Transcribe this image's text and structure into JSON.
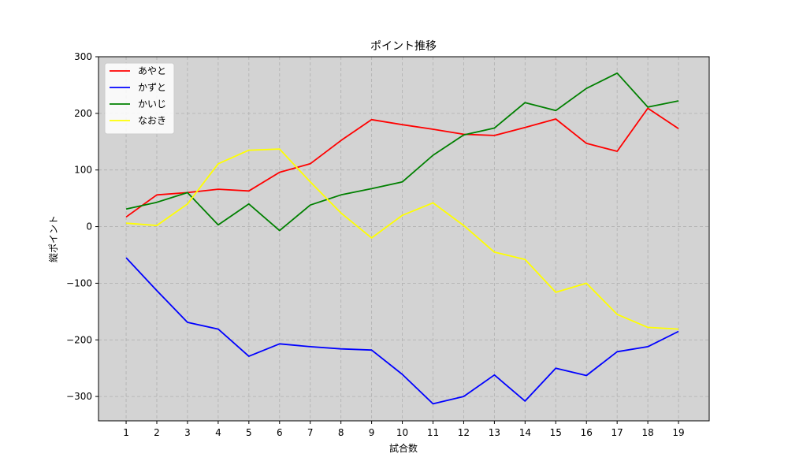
{
  "chart_data": {
    "type": "line",
    "title": "ポイント推移",
    "xlabel": "試合数",
    "ylabel": "縦ポイント",
    "x": [
      1,
      2,
      3,
      4,
      5,
      6,
      7,
      8,
      9,
      10,
      11,
      12,
      13,
      14,
      15,
      16,
      17,
      18,
      19
    ],
    "xlim": [
      0.1,
      20.0
    ],
    "ylim": [
      -343,
      300
    ],
    "yticks": [
      -300,
      -200,
      -100,
      0,
      100,
      200,
      300
    ],
    "ytick_labels": [
      "−300",
      "−200",
      "−100",
      "0",
      "100",
      "200",
      "300"
    ],
    "grid": true,
    "legend_position": "top-left",
    "background_color": "#d3d3d3",
    "series": [
      {
        "name": "あやと",
        "color": "#ff0000",
        "values": [
          17,
          56,
          60,
          66,
          63,
          96,
          111,
          152,
          189,
          180,
          172,
          163,
          161,
          175,
          190,
          147,
          133,
          209,
          173
        ]
      },
      {
        "name": "かずと",
        "color": "#0000ff",
        "values": [
          -55,
          -113,
          -169,
          -181,
          -229,
          -207,
          -212,
          -216,
          -218,
          -261,
          -313,
          -300,
          -262,
          -308,
          -250,
          -263,
          -221,
          -212,
          -185
        ]
      },
      {
        "name": "かいじ",
        "color": "#008000",
        "values": [
          31,
          43,
          60,
          3,
          40,
          -7,
          38,
          56,
          67,
          79,
          126,
          162,
          174,
          219,
          205,
          244,
          271,
          211,
          222
        ]
      },
      {
        "name": "なおき",
        "color": "#ffff00",
        "values": [
          6,
          2,
          40,
          111,
          135,
          137,
          79,
          24,
          -20,
          20,
          42,
          2,
          -45,
          -58,
          -116,
          -100,
          -155,
          -178,
          -181
        ]
      }
    ]
  }
}
